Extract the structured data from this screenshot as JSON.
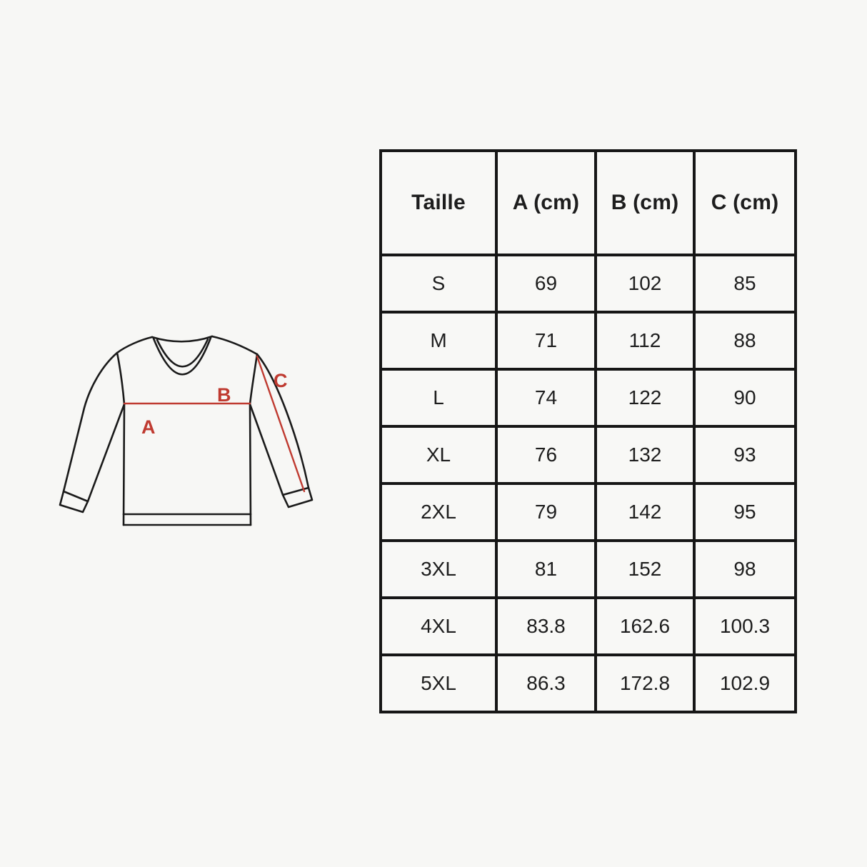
{
  "page": {
    "background_color": "#f7f7f5",
    "ink_color": "#161616"
  },
  "diagram": {
    "description": "long-sleeve-sweatshirt-measurement-sketch",
    "accent_color": "#bf3a30",
    "outline_color": "#1a1a1a",
    "labels": {
      "a": "A",
      "b": "B",
      "c": "C"
    }
  },
  "table": {
    "headers": [
      "Taille",
      "A (cm)",
      "B (cm)",
      "C (cm)"
    ],
    "rows": [
      [
        "S",
        "69",
        "102",
        "85"
      ],
      [
        "M",
        "71",
        "112",
        "88"
      ],
      [
        "L",
        "74",
        "122",
        "90"
      ],
      [
        "XL",
        "76",
        "132",
        "93"
      ],
      [
        "2XL",
        "79",
        "142",
        "95"
      ],
      [
        "3XL",
        "81",
        "152",
        "98"
      ],
      [
        "4XL",
        "83.8",
        "162.6",
        "100.3"
      ],
      [
        "5XL",
        "86.3",
        "172.8",
        "102.9"
      ]
    ]
  }
}
